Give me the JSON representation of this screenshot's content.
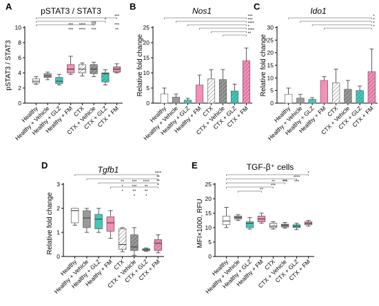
{
  "colors": {
    "healthy": "#ffffff",
    "vehicle": "#9a9a9a",
    "glz": "#3fc9b8",
    "fm": "#f48fb8",
    "ctx": "#ffffff",
    "ctx_vehicle": "#9a9a9a",
    "ctx_glz": "#3fc9b8",
    "ctx_fm": "#f48fb8"
  },
  "chart_data": [
    {
      "panel": "A",
      "type": "box",
      "title": "pSTAT3 / STAT3",
      "title_italic": false,
      "ylabel": "pSTAT3 / STAT3",
      "ylim": [
        0,
        10
      ],
      "yticks": [
        0,
        2,
        4,
        6,
        8,
        10
      ],
      "categories": [
        "Healthy",
        "Healthy + Vehicle",
        "Healthy + GLZ",
        "Healthy + FM",
        "CTX",
        "CTX + Vehicle",
        "CTX + GLZ",
        "CTX + FM"
      ],
      "boxes": [
        {
          "min": 2.5,
          "q1": 2.7,
          "median": 2.9,
          "q3": 3.2,
          "max": 3.5
        },
        {
          "min": 3.1,
          "q1": 3.4,
          "median": 3.6,
          "q3": 3.9,
          "max": 4.1
        },
        {
          "min": 2.4,
          "q1": 2.6,
          "median": 2.9,
          "q3": 3.4,
          "max": 3.8
        },
        {
          "min": 3.8,
          "q1": 4.0,
          "median": 4.5,
          "q3": 5.1,
          "max": 6.2
        },
        {
          "min": 3.6,
          "q1": 4.0,
          "median": 4.5,
          "q3": 5.1,
          "max": 5.3
        },
        {
          "min": 3.5,
          "q1": 3.9,
          "median": 4.5,
          "q3": 5.1,
          "max": 5.4
        },
        {
          "min": 2.4,
          "q1": 2.8,
          "median": 3.9,
          "q3": 4.0,
          "max": 4.4
        },
        {
          "min": 4.0,
          "q1": 4.1,
          "median": 4.5,
          "q3": 4.8,
          "max": 5.2
        }
      ],
      "brackets": [
        {
          "from": 0,
          "to": 7,
          "label": "***"
        },
        {
          "from": 0,
          "to": 6,
          "label": "*"
        },
        {
          "from": 0,
          "to": 5,
          "label": "***"
        }
      ],
      "col_marks": [
        {
          "col": 3,
          "labels": [
            "***",
            "***"
          ]
        },
        {
          "col": 4,
          "labels": [
            "****",
            "****"
          ]
        },
        {
          "col": 5,
          "labels": [
            "***",
            "***"
          ]
        },
        {
          "col": 7,
          "labels": [
            "***",
            "**"
          ]
        }
      ]
    },
    {
      "panel": "B",
      "type": "bar",
      "title": "Nos1",
      "title_italic": true,
      "ylabel": "Relative fold change",
      "ylim": [
        0,
        25
      ],
      "yticks": [
        0,
        5,
        10,
        15,
        20,
        25
      ],
      "categories": [
        "Healthy",
        "Healthy + Vehicle",
        "Healthy + GLZ",
        "Healthy + FM",
        "CTX",
        "CTX + Vehicle",
        "CTX + GLZ",
        "CTX + FM"
      ],
      "values": [
        3.0,
        2.0,
        1.0,
        6.0,
        8.0,
        7.8,
        4.0,
        14.0
      ],
      "errors": [
        2.0,
        1.0,
        0.6,
        3.3,
        3.0,
        3.3,
        2.3,
        4.2
      ],
      "brackets": [
        {
          "from": 0,
          "to": 7,
          "label": "***"
        },
        {
          "from": 1,
          "to": 7,
          "label": "***"
        },
        {
          "from": 2,
          "to": 7,
          "label": "****"
        },
        {
          "from": 3,
          "to": 7,
          "label": "*"
        },
        {
          "from": 4,
          "to": 7,
          "label": "****"
        },
        {
          "from": 5,
          "to": 7,
          "label": "**"
        }
      ]
    },
    {
      "panel": "C",
      "type": "bar",
      "title": "Ido1",
      "title_italic": true,
      "ylabel": "Relative fold change",
      "ylim": [
        0,
        30
      ],
      "yticks": [
        0,
        5,
        10,
        15,
        20,
        25,
        30
      ],
      "categories": [
        "Healthy",
        "Healthy + Vehicle",
        "Healthy + GLZ",
        "Healthy + FM",
        "CTX",
        "CTX + Vehicle",
        "CTX + GLZ",
        "CTX + FM"
      ],
      "values": [
        3.5,
        2.0,
        1.5,
        9.0,
        8.0,
        5.5,
        5.0,
        12.5
      ],
      "errors": [
        2.5,
        1.5,
        0.7,
        1.5,
        5.5,
        3.5,
        1.8,
        9.0
      ],
      "brackets": [
        {
          "from": 0,
          "to": 7,
          "label": "*"
        },
        {
          "from": 1,
          "to": 7,
          "label": "*"
        },
        {
          "from": 2,
          "to": 7,
          "label": "*"
        },
        {
          "from": 3,
          "to": 7,
          "label": "*"
        }
      ]
    },
    {
      "panel": "D",
      "type": "box",
      "title": "Tgfb1",
      "title_italic": true,
      "ylabel": "Relative fold change",
      "ylim": [
        0,
        3
      ],
      "yticks": [
        0,
        1,
        2,
        3
      ],
      "categories": [
        "Healthy",
        "Healthy + Vehicle",
        "Healthy + GLZ",
        "Healthy + FM",
        "CTX",
        "CTX + Vehicle",
        "CTX + GLZ",
        "CTX + FM"
      ],
      "boxes": [
        {
          "min": 1.3,
          "q1": 1.4,
          "median": 1.9,
          "q3": 2.0,
          "max": 2.0
        },
        {
          "min": 1.0,
          "q1": 1.2,
          "median": 1.6,
          "q3": 1.9,
          "max": 2.0
        },
        {
          "min": 1.0,
          "q1": 1.15,
          "median": 1.55,
          "q3": 1.75,
          "max": 2.0
        },
        {
          "min": 0.75,
          "q1": 1.05,
          "median": 1.4,
          "q3": 1.65,
          "max": 1.9
        },
        {
          "min": 0.2,
          "q1": 0.3,
          "median": 0.5,
          "q3": 1.15,
          "max": 1.2
        },
        {
          "min": 0.05,
          "q1": 0.25,
          "median": 0.4,
          "q3": 0.9,
          "max": 1.2
        },
        {
          "min": 0.22,
          "q1": 0.25,
          "median": 0.28,
          "q3": 0.32,
          "max": 0.35
        },
        {
          "min": 0.15,
          "q1": 0.25,
          "median": 0.55,
          "q3": 0.7,
          "max": 0.9
        }
      ],
      "brackets": [
        {
          "from": 0,
          "to": 7,
          "label": "****"
        },
        {
          "from": 1,
          "to": 7,
          "label": "**"
        },
        {
          "from": 2,
          "to": 7,
          "label": "**"
        },
        {
          "from": 3,
          "to": 7,
          "label": "*"
        }
      ],
      "col_marks": [
        {
          "col": 4,
          "labels": [
            "**",
            "*",
            "*"
          ]
        },
        {
          "col": 5,
          "labels": [
            "***",
            "***",
            "**",
            "*"
          ]
        },
        {
          "col": 6,
          "labels": [
            "****",
            "**",
            "**",
            "*"
          ]
        }
      ]
    },
    {
      "panel": "E",
      "type": "box",
      "title": "TGF-β⁺ cells",
      "title_italic": false,
      "ylabel": "MFI×1000, RFU",
      "ylim": [
        0,
        25
      ],
      "yticks": [
        0,
        5,
        10,
        15,
        20,
        25
      ],
      "categories": [
        "Healthy",
        "Healthy + Vehicle",
        "Healthy + GLZ",
        "Healthy + FM",
        "CTX",
        "CTX + Vehicle",
        "CTX + GLZ",
        "CTX + FM"
      ],
      "boxes": [
        {
          "min": 10.0,
          "q1": 11.0,
          "median": 12.3,
          "q3": 14.0,
          "max": 17.0
        },
        {
          "min": 12.5,
          "q1": 13.0,
          "median": 13.5,
          "q3": 14.0,
          "max": 14.5
        },
        {
          "min": 9.5,
          "q1": 10.0,
          "median": 11.5,
          "q3": 12.0,
          "max": 13.5
        },
        {
          "min": 11.5,
          "q1": 12.0,
          "median": 13.0,
          "q3": 14.0,
          "max": 15.0
        },
        {
          "min": 9.5,
          "q1": 10.0,
          "median": 10.5,
          "q3": 11.5,
          "max": 12.0
        },
        {
          "min": 9.8,
          "q1": 10.2,
          "median": 10.8,
          "q3": 11.2,
          "max": 11.8
        },
        {
          "min": 9.3,
          "q1": 10.0,
          "median": 10.5,
          "q3": 11.0,
          "max": 11.5
        },
        {
          "min": 10.5,
          "q1": 11.0,
          "median": 11.5,
          "q3": 12.0,
          "max": 12.5
        }
      ],
      "brackets": [
        {
          "from": 0,
          "to": 7,
          "label": "*"
        },
        {
          "from": 0,
          "to": 6,
          "label": "****"
        },
        {
          "from": 0,
          "to": 5,
          "label": "***"
        },
        {
          "from": 0,
          "to": 4,
          "label": "***"
        },
        {
          "from": 1,
          "to": 3,
          "label": "**"
        }
      ],
      "col_marks": [
        {
          "col": 4,
          "labels": [
            "**"
          ]
        },
        {
          "col": 5,
          "labels": [
            "***"
          ]
        },
        {
          "col": 6,
          "labels": [
            "***"
          ]
        }
      ]
    }
  ]
}
